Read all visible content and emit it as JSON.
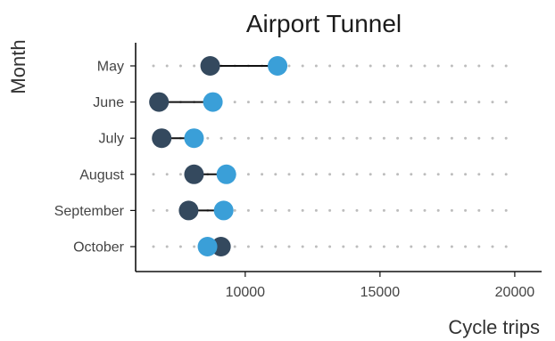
{
  "chart_data": {
    "type": "dumbbell",
    "title": "Airport Tunnel",
    "xlabel": "Cycle trips",
    "ylabel": "Month",
    "categories": [
      "May",
      "June",
      "July",
      "August",
      "September",
      "October"
    ],
    "series": [
      {
        "color": "#34495e",
        "values": [
          8700,
          6800,
          6900,
          8100,
          7900,
          9100
        ]
      },
      {
        "color": "#3a9fd8",
        "values": [
          11200,
          8800,
          8100,
          9300,
          9200,
          8600
        ]
      }
    ],
    "xlim": [
      6000,
      20500
    ],
    "xticks": [
      10000,
      15000,
      20000
    ],
    "grid": true
  }
}
